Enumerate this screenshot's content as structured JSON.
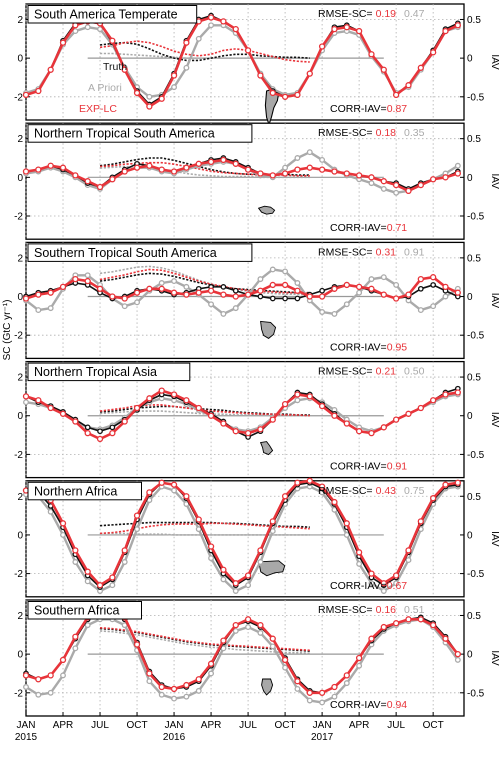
{
  "chart_data": {
    "type": "line",
    "x_axis": {
      "months": [
        "JAN",
        "APR",
        "JUL",
        "OCT",
        "JAN",
        "APR",
        "JUL",
        "OCT",
        "JAN",
        "APR",
        "JUL",
        "OCT"
      ],
      "years": [
        "2015",
        "2016",
        "2017"
      ],
      "range_months": [
        0,
        35.5
      ]
    },
    "y_left_label": "SC (GtC yr⁻¹)",
    "y_right_label": "IAV",
    "legend": [
      "Truth",
      "A Priori",
      "EXP-LC"
    ],
    "colors": {
      "truth": "#111111",
      "prior": "#aaaaaa",
      "exp": "#e8343a"
    },
    "rmse_label": "RMSE-SC=",
    "corr_label": "CORR-IAV=",
    "panels": [
      {
        "title": "South America Temperate",
        "rmse_exp": "0.19",
        "rmse_prior": "0.47",
        "corr": "0.87",
        "sc_ticks": [
          2,
          0,
          -2
        ],
        "iav_ticks": [
          "0.5",
          "0",
          "-0.5"
        ],
        "ylim": [
          -3.2,
          2.8
        ],
        "iav_scale": 4,
        "truth": [
          -1.9,
          -1.7,
          -0.6,
          0.9,
          1.8,
          2.0,
          1.8,
          0.8,
          -0.6,
          -1.7,
          -2.4,
          -2.0,
          -0.8,
          0.9,
          2.0,
          2.2,
          1.9,
          1.5,
          0.4,
          -0.9,
          -1.7,
          -2.0,
          -1.9,
          -0.8,
          0.6,
          1.6,
          1.7,
          1.4,
          0.2,
          -0.6,
          -1.9,
          -1.4,
          -0.5,
          0.4,
          1.5,
          1.8
        ],
        "prior": [
          -1.8,
          -1.6,
          -0.6,
          0.7,
          1.4,
          1.6,
          1.5,
          0.7,
          -0.5,
          -1.5,
          -2.0,
          -1.9,
          -1.5,
          -0.5,
          1.0,
          1.7,
          1.7,
          1.3,
          0.4,
          -0.8,
          -1.6,
          -1.9,
          -1.8,
          -0.8,
          0.4,
          1.3,
          1.4,
          1.2,
          0.1,
          -0.7,
          -1.8,
          -1.5,
          -0.6,
          0.3,
          1.4,
          1.6
        ],
        "exp": [
          -1.9,
          -1.7,
          -0.6,
          0.8,
          1.7,
          1.9,
          1.8,
          0.9,
          -0.6,
          -1.8,
          -2.5,
          -2.1,
          -0.9,
          0.8,
          1.9,
          2.1,
          1.9,
          1.5,
          0.4,
          -0.9,
          -1.8,
          -2.0,
          -1.9,
          -0.8,
          0.6,
          1.5,
          1.6,
          1.4,
          0.2,
          -0.6,
          -1.9,
          -1.4,
          -0.5,
          0.3,
          1.4,
          1.7
        ],
        "iav_truth": [
          0.17,
          0.19,
          0.2,
          0.18,
          0.12,
          0.05,
          0.0,
          -0.03,
          -0.03,
          0.0,
          0.03,
          0.05,
          0.05,
          0.03,
          0.02,
          0.01,
          0.01,
          0.0
        ],
        "iav_prior": [
          0.06,
          0.06,
          0.05,
          0.04,
          0.03,
          0.02,
          0.01,
          0.0,
          0.0,
          0.0,
          0.0,
          0.0,
          0.0,
          0.0,
          0.0,
          0.0,
          0.0,
          0.0
        ],
        "iav_exp": [
          0.14,
          0.16,
          0.2,
          0.22,
          0.2,
          0.15,
          0.09,
          0.05,
          0.03,
          0.05,
          0.1,
          0.12,
          0.1,
          0.06,
          0.02,
          -0.02,
          -0.04,
          -0.05
        ]
      },
      {
        "title": "Northern Tropical South America",
        "rmse_exp": "0.18",
        "rmse_prior": "0.35",
        "corr": "0.71",
        "sc_ticks": [
          2,
          0,
          -2
        ],
        "iav_ticks": [
          "0.5",
          "0",
          "-0.5"
        ],
        "ylim": [
          -3.2,
          2.8
        ],
        "iav_scale": 4,
        "truth": [
          0.3,
          0.4,
          0.6,
          0.4,
          0.1,
          -0.3,
          -0.5,
          0.0,
          0.4,
          0.7,
          0.6,
          0.4,
          0.3,
          0.5,
          0.7,
          0.9,
          1.0,
          0.8,
          0.5,
          0.2,
          0.1,
          0.2,
          0.4,
          0.5,
          0.4,
          0.3,
          0.2,
          0.1,
          0.0,
          -0.2,
          -0.3,
          -0.6,
          -0.3,
          -0.1,
          0.0,
          0.3
        ],
        "prior": [
          0.2,
          0.3,
          0.5,
          0.3,
          0.0,
          -0.4,
          -0.6,
          -0.1,
          0.3,
          0.5,
          0.5,
          0.3,
          0.2,
          0.4,
          0.6,
          0.7,
          0.8,
          0.7,
          0.4,
          0.1,
          0.0,
          0.5,
          1.0,
          1.3,
          0.9,
          0.4,
          0.1,
          -0.1,
          -0.3,
          -0.6,
          -0.8,
          -0.7,
          -0.4,
          -0.1,
          0.2,
          0.6
        ],
        "exp": [
          0.3,
          0.4,
          0.6,
          0.5,
          0.1,
          -0.2,
          -0.5,
          -0.1,
          0.3,
          0.5,
          0.6,
          0.4,
          0.3,
          0.5,
          0.7,
          0.8,
          0.9,
          0.7,
          0.4,
          0.2,
          0.1,
          0.2,
          0.4,
          0.5,
          0.4,
          0.3,
          0.2,
          0.1,
          0.0,
          -0.2,
          -0.4,
          -0.7,
          -0.4,
          -0.1,
          0.0,
          0.2
        ],
        "iav_truth": [
          0.15,
          0.17,
          0.2,
          0.23,
          0.25,
          0.25,
          0.22,
          0.18,
          0.14,
          0.1,
          0.07,
          0.05,
          0.04,
          0.04,
          0.04,
          0.04,
          0.03,
          0.03
        ],
        "iav_prior": [
          0.12,
          0.13,
          0.14,
          0.13,
          0.12,
          0.1,
          0.08,
          0.05,
          0.03,
          0.02,
          0.01,
          0.01,
          0.01,
          0.0,
          0.0,
          0.0,
          0.0,
          0.0
        ],
        "iav_exp": [
          0.14,
          0.15,
          0.17,
          0.18,
          0.19,
          0.19,
          0.17,
          0.14,
          0.11,
          0.08,
          0.06,
          0.05,
          0.04,
          0.03,
          0.03,
          0.03,
          0.02,
          0.02
        ]
      },
      {
        "title": "Southern Tropical South America",
        "rmse_exp": "0.31",
        "rmse_prior": "0.91",
        "corr": "0.95",
        "sc_ticks": [
          2,
          0,
          -2
        ],
        "iav_ticks": [
          "0.5",
          "0",
          "-0.5"
        ],
        "ylim": [
          -3.2,
          2.8
        ],
        "iav_scale": 4,
        "truth": [
          0.0,
          0.2,
          0.3,
          0.5,
          0.7,
          0.6,
          0.2,
          -0.1,
          0.0,
          0.3,
          0.4,
          0.3,
          0.1,
          0.2,
          0.4,
          0.5,
          0.5,
          0.3,
          0.1,
          0.0,
          -0.1,
          -0.1,
          -0.1,
          0.1,
          0.3,
          0.5,
          0.6,
          0.5,
          0.3,
          0.1,
          -0.1,
          0.0,
          0.4,
          0.6,
          0.3,
          0.0
        ],
        "prior": [
          -0.2,
          -0.7,
          -0.6,
          0.4,
          1.1,
          1.1,
          0.6,
          -0.1,
          -0.5,
          -0.3,
          0.3,
          0.7,
          0.8,
          0.5,
          0.1,
          -0.4,
          -0.9,
          -0.6,
          0.1,
          0.9,
          1.4,
          1.3,
          0.7,
          -0.2,
          -0.8,
          -0.9,
          -0.4,
          0.2,
          0.9,
          1.0,
          0.6,
          -0.2,
          -0.7,
          -0.5,
          0.0,
          0.4
        ],
        "exp": [
          -0.1,
          0.1,
          0.2,
          0.5,
          0.9,
          0.8,
          0.4,
          0.0,
          -0.1,
          0.2,
          0.4,
          0.4,
          0.2,
          0.1,
          0.2,
          0.3,
          0.1,
          0.0,
          0.1,
          0.3,
          0.6,
          0.6,
          0.3,
          0.0,
          0.0,
          0.4,
          0.6,
          0.5,
          0.4,
          0.1,
          -0.1,
          0.1,
          0.9,
          1.0,
          0.5,
          0.2
        ],
        "iav_truth": [
          0.2,
          0.22,
          0.25,
          0.28,
          0.3,
          0.29,
          0.26,
          0.22,
          0.18,
          0.15,
          0.12,
          0.1,
          0.09,
          0.08,
          0.07,
          0.06,
          0.05,
          0.05
        ],
        "iav_prior": [
          0.3,
          0.32,
          0.35,
          0.38,
          0.39,
          0.37,
          0.33,
          0.27,
          0.21,
          0.16,
          0.12,
          0.09,
          0.07,
          0.05,
          0.04,
          0.03,
          0.03,
          0.02
        ],
        "iav_exp": [
          0.22,
          0.25,
          0.28,
          0.32,
          0.35,
          0.34,
          0.3,
          0.25,
          0.2,
          0.16,
          0.13,
          0.1,
          0.08,
          0.07,
          0.06,
          0.05,
          0.05,
          0.04
        ]
      },
      {
        "title": "Northern Tropical Asia",
        "rmse_exp": "0.21",
        "rmse_prior": "0.50",
        "corr": "0.91",
        "sc_ticks": [
          2,
          0,
          -2
        ],
        "iav_ticks": [
          "0.5",
          "0",
          "-0.5"
        ],
        "ylim": [
          -3.2,
          2.8
        ],
        "iav_scale": 4,
        "truth": [
          1.0,
          0.7,
          0.5,
          0.2,
          -0.2,
          -0.6,
          -0.8,
          -0.6,
          -0.2,
          0.3,
          0.8,
          1.1,
          1.0,
          0.7,
          0.4,
          0.1,
          -0.3,
          -0.8,
          -1.1,
          -0.8,
          -0.2,
          0.6,
          1.2,
          1.1,
          0.6,
          0.1,
          -0.4,
          -0.8,
          -0.9,
          -0.6,
          -0.2,
          0.1,
          0.4,
          0.8,
          1.2,
          1.4
        ],
        "prior": [
          0.7,
          0.6,
          0.4,
          0.1,
          -0.3,
          -0.6,
          -0.7,
          -0.5,
          -0.1,
          0.4,
          0.7,
          0.9,
          0.8,
          0.6,
          0.3,
          0.0,
          -0.4,
          -0.7,
          -0.8,
          -0.6,
          -0.1,
          0.4,
          0.8,
          0.9,
          0.7,
          0.3,
          -0.2,
          -0.6,
          -0.8,
          -0.6,
          -0.2,
          0.1,
          0.4,
          0.7,
          1.0,
          1.1
        ],
        "exp": [
          1.0,
          0.8,
          0.4,
          0.1,
          -0.3,
          -0.9,
          -1.2,
          -0.9,
          -0.3,
          0.4,
          0.9,
          1.3,
          1.1,
          0.8,
          0.4,
          0.0,
          -0.4,
          -0.8,
          -0.9,
          -0.7,
          -0.2,
          0.6,
          1.1,
          1.0,
          0.5,
          0.0,
          -0.4,
          -0.8,
          -0.9,
          -0.6,
          -0.2,
          0.1,
          0.4,
          0.8,
          1.1,
          1.2
        ],
        "iav_truth": [
          0.05,
          0.06,
          0.08,
          0.1,
          0.11,
          0.12,
          0.12,
          0.1,
          0.09,
          0.08,
          0.07,
          0.05,
          0.04,
          0.03,
          0.02,
          0.02,
          0.01,
          0.01
        ],
        "iav_prior": [
          0.03,
          0.04,
          0.05,
          0.06,
          0.06,
          0.06,
          0.05,
          0.04,
          0.03,
          0.02,
          0.02,
          0.01,
          0.01,
          0.01,
          0.0,
          0.0,
          0.0,
          0.0
        ],
        "iav_exp": [
          0.06,
          0.08,
          0.1,
          0.13,
          0.14,
          0.14,
          0.12,
          0.1,
          0.08,
          0.06,
          0.05,
          0.04,
          0.03,
          0.02,
          0.02,
          0.01,
          0.01,
          0.0
        ]
      },
      {
        "title": "Northern Africa",
        "rmse_exp": "0.43",
        "rmse_prior": "0.75",
        "corr": "0.67",
        "sc_ticks": [
          2,
          0,
          -2
        ],
        "iav_ticks": [
          "0.5",
          "0",
          "-0.5"
        ],
        "ylim": [
          -3.2,
          2.8
        ],
        "iav_scale": 4,
        "truth": [
          2.3,
          2.2,
          1.5,
          0.4,
          -1.0,
          -2.1,
          -2.7,
          -2.3,
          -0.9,
          0.8,
          2.1,
          2.7,
          2.6,
          1.9,
          0.7,
          -0.8,
          -2.0,
          -2.6,
          -2.2,
          -0.9,
          0.6,
          1.8,
          2.6,
          2.7,
          2.4,
          1.6,
          0.4,
          -1.1,
          -2.2,
          -2.6,
          -2.2,
          -0.9,
          0.6,
          1.8,
          2.5,
          2.6
        ],
        "prior": [
          2.1,
          2.0,
          1.2,
          0.0,
          -1.4,
          -2.4,
          -2.9,
          -2.6,
          -1.4,
          0.3,
          1.8,
          2.5,
          2.3,
          1.6,
          0.3,
          -1.2,
          -2.3,
          -2.9,
          -2.6,
          -1.4,
          0.2,
          1.6,
          2.4,
          2.5,
          2.2,
          1.3,
          0.0,
          -1.5,
          -2.5,
          -2.9,
          -2.5,
          -1.3,
          0.3,
          1.6,
          2.4,
          2.5
        ],
        "exp": [
          2.3,
          2.3,
          1.8,
          0.6,
          -0.8,
          -1.9,
          -2.6,
          -2.2,
          -0.8,
          1.0,
          2.2,
          2.7,
          2.6,
          2.0,
          0.8,
          -0.6,
          -1.8,
          -2.5,
          -2.1,
          -0.8,
          0.7,
          2.0,
          2.7,
          2.8,
          2.5,
          1.7,
          0.6,
          -0.9,
          -2.0,
          -2.5,
          -2.1,
          -0.8,
          0.7,
          1.9,
          2.6,
          2.7
        ],
        "iav_truth": [
          0.12,
          0.13,
          0.14,
          0.15,
          0.16,
          0.16,
          0.16,
          0.16,
          0.16,
          0.16,
          0.15,
          0.15,
          0.14,
          0.13,
          0.12,
          0.11,
          0.11,
          0.1
        ],
        "iav_prior": [
          0.02,
          0.02,
          0.02,
          0.01,
          0.01,
          0.01,
          0.0,
          0.0,
          0.0,
          0.0,
          0.0,
          0.0,
          0.0,
          0.0,
          0.0,
          0.0,
          0.0,
          0.0
        ],
        "iav_exp": [
          0.02,
          0.03,
          0.05,
          0.08,
          0.11,
          0.13,
          0.14,
          0.14,
          0.14,
          0.15,
          0.15,
          0.14,
          0.13,
          0.12,
          0.11,
          0.1,
          0.09,
          0.08
        ]
      },
      {
        "title": "Southern Africa",
        "rmse_exp": "0.16",
        "rmse_prior": "0.51",
        "corr": "0.94",
        "sc_ticks": [
          2,
          0,
          -2
        ],
        "iav_ticks": [
          "0.5",
          "0",
          "-0.5"
        ],
        "ylim": [
          -3.2,
          2.8
        ],
        "iav_scale": 4,
        "truth": [
          -1.0,
          -1.3,
          -1.1,
          -0.3,
          0.8,
          1.8,
          2.1,
          2.1,
          1.8,
          0.6,
          -0.9,
          -1.6,
          -1.8,
          -1.7,
          -1.4,
          -0.6,
          0.6,
          1.5,
          1.7,
          1.4,
          0.8,
          -0.2,
          -1.3,
          -1.9,
          -2.0,
          -1.7,
          -1.1,
          -0.2,
          0.7,
          1.3,
          1.6,
          1.8,
          1.9,
          1.6,
          0.9,
          0.0
        ],
        "prior": [
          -1.7,
          -2.1,
          -2.0,
          -1.1,
          0.3,
          1.5,
          1.8,
          1.8,
          1.5,
          0.2,
          -1.4,
          -2.1,
          -2.3,
          -2.2,
          -1.9,
          -1.0,
          0.3,
          1.2,
          1.4,
          1.1,
          0.4,
          -0.7,
          -1.8,
          -2.4,
          -2.5,
          -2.2,
          -1.5,
          -0.6,
          0.5,
          1.2,
          1.5,
          1.7,
          1.8,
          1.4,
          0.6,
          -0.3
        ],
        "exp": [
          -1.1,
          -1.3,
          -1.1,
          -0.3,
          0.9,
          1.9,
          2.2,
          2.2,
          1.9,
          0.5,
          -1.0,
          -1.7,
          -1.8,
          -1.6,
          -1.3,
          -0.5,
          0.7,
          1.5,
          1.8,
          1.5,
          0.8,
          -0.3,
          -1.4,
          -2.0,
          -2.0,
          -1.7,
          -1.1,
          -0.2,
          0.8,
          1.4,
          1.6,
          1.8,
          1.8,
          1.5,
          0.8,
          0.0
        ],
        "iav_truth": [
          0.33,
          0.32,
          0.3,
          0.28,
          0.25,
          0.22,
          0.19,
          0.16,
          0.14,
          0.12,
          0.11,
          0.1,
          0.09,
          0.08,
          0.07,
          0.06,
          0.05,
          0.04
        ],
        "iav_prior": [
          0.3,
          0.29,
          0.27,
          0.25,
          0.22,
          0.19,
          0.16,
          0.13,
          0.11,
          0.09,
          0.08,
          0.06,
          0.05,
          0.04,
          0.03,
          0.02,
          0.02,
          0.01
        ],
        "iav_exp": [
          0.34,
          0.33,
          0.31,
          0.29,
          0.26,
          0.23,
          0.2,
          0.17,
          0.15,
          0.13,
          0.12,
          0.11,
          0.1,
          0.09,
          0.08,
          0.07,
          0.06,
          0.05
        ]
      }
    ]
  }
}
